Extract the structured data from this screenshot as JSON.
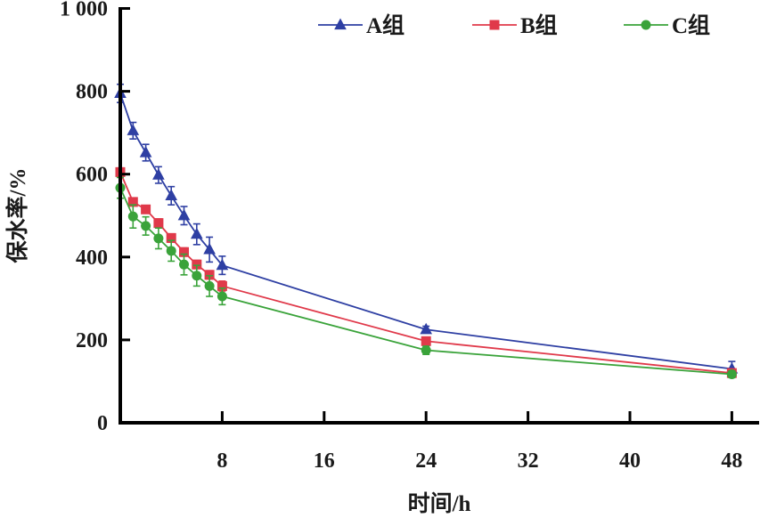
{
  "chart_data": {
    "type": "line",
    "xlabel": "时间/h",
    "ylabel": "保水率/%",
    "xlim": [
      0,
      50
    ],
    "ylim": [
      0,
      1000
    ],
    "xticks": [
      8,
      16,
      24,
      32,
      40,
      48
    ],
    "xtick_labels": [
      "8",
      "16",
      "24",
      "32",
      "40",
      "48"
    ],
    "yticks": [
      0,
      200,
      400,
      600,
      800,
      1000
    ],
    "ytick_labels": [
      "0",
      "200",
      "400",
      "600",
      "800",
      "1 000"
    ],
    "grid": false,
    "legend_position": "top-right",
    "series": [
      {
        "name": "A组",
        "color": "#2e3fa3",
        "marker": "triangle",
        "x": [
          0,
          1,
          2,
          3,
          4,
          5,
          6,
          7,
          8,
          24,
          48
        ],
        "y": [
          795,
          705,
          652,
          598,
          548,
          500,
          455,
          418,
          380,
          225,
          130
        ],
        "error": [
          22,
          20,
          20,
          20,
          22,
          22,
          25,
          30,
          22,
          8,
          18
        ]
      },
      {
        "name": "B组",
        "color": "#e0394a",
        "marker": "square",
        "x": [
          0,
          1,
          2,
          3,
          4,
          5,
          6,
          7,
          8,
          24,
          48
        ],
        "y": [
          605,
          533,
          515,
          482,
          446,
          412,
          382,
          357,
          330,
          197,
          120
        ],
        "error": [
          10,
          8,
          8,
          10,
          10,
          10,
          10,
          10,
          12,
          8,
          6
        ]
      },
      {
        "name": "C组",
        "color": "#3aa33a",
        "marker": "circle",
        "x": [
          0,
          1,
          2,
          3,
          4,
          5,
          6,
          7,
          8,
          24,
          48
        ],
        "y": [
          567,
          498,
          475,
          445,
          415,
          382,
          355,
          330,
          305,
          175,
          117
        ],
        "error": [
          25,
          28,
          22,
          25,
          25,
          25,
          25,
          25,
          20,
          10,
          8
        ]
      }
    ]
  }
}
